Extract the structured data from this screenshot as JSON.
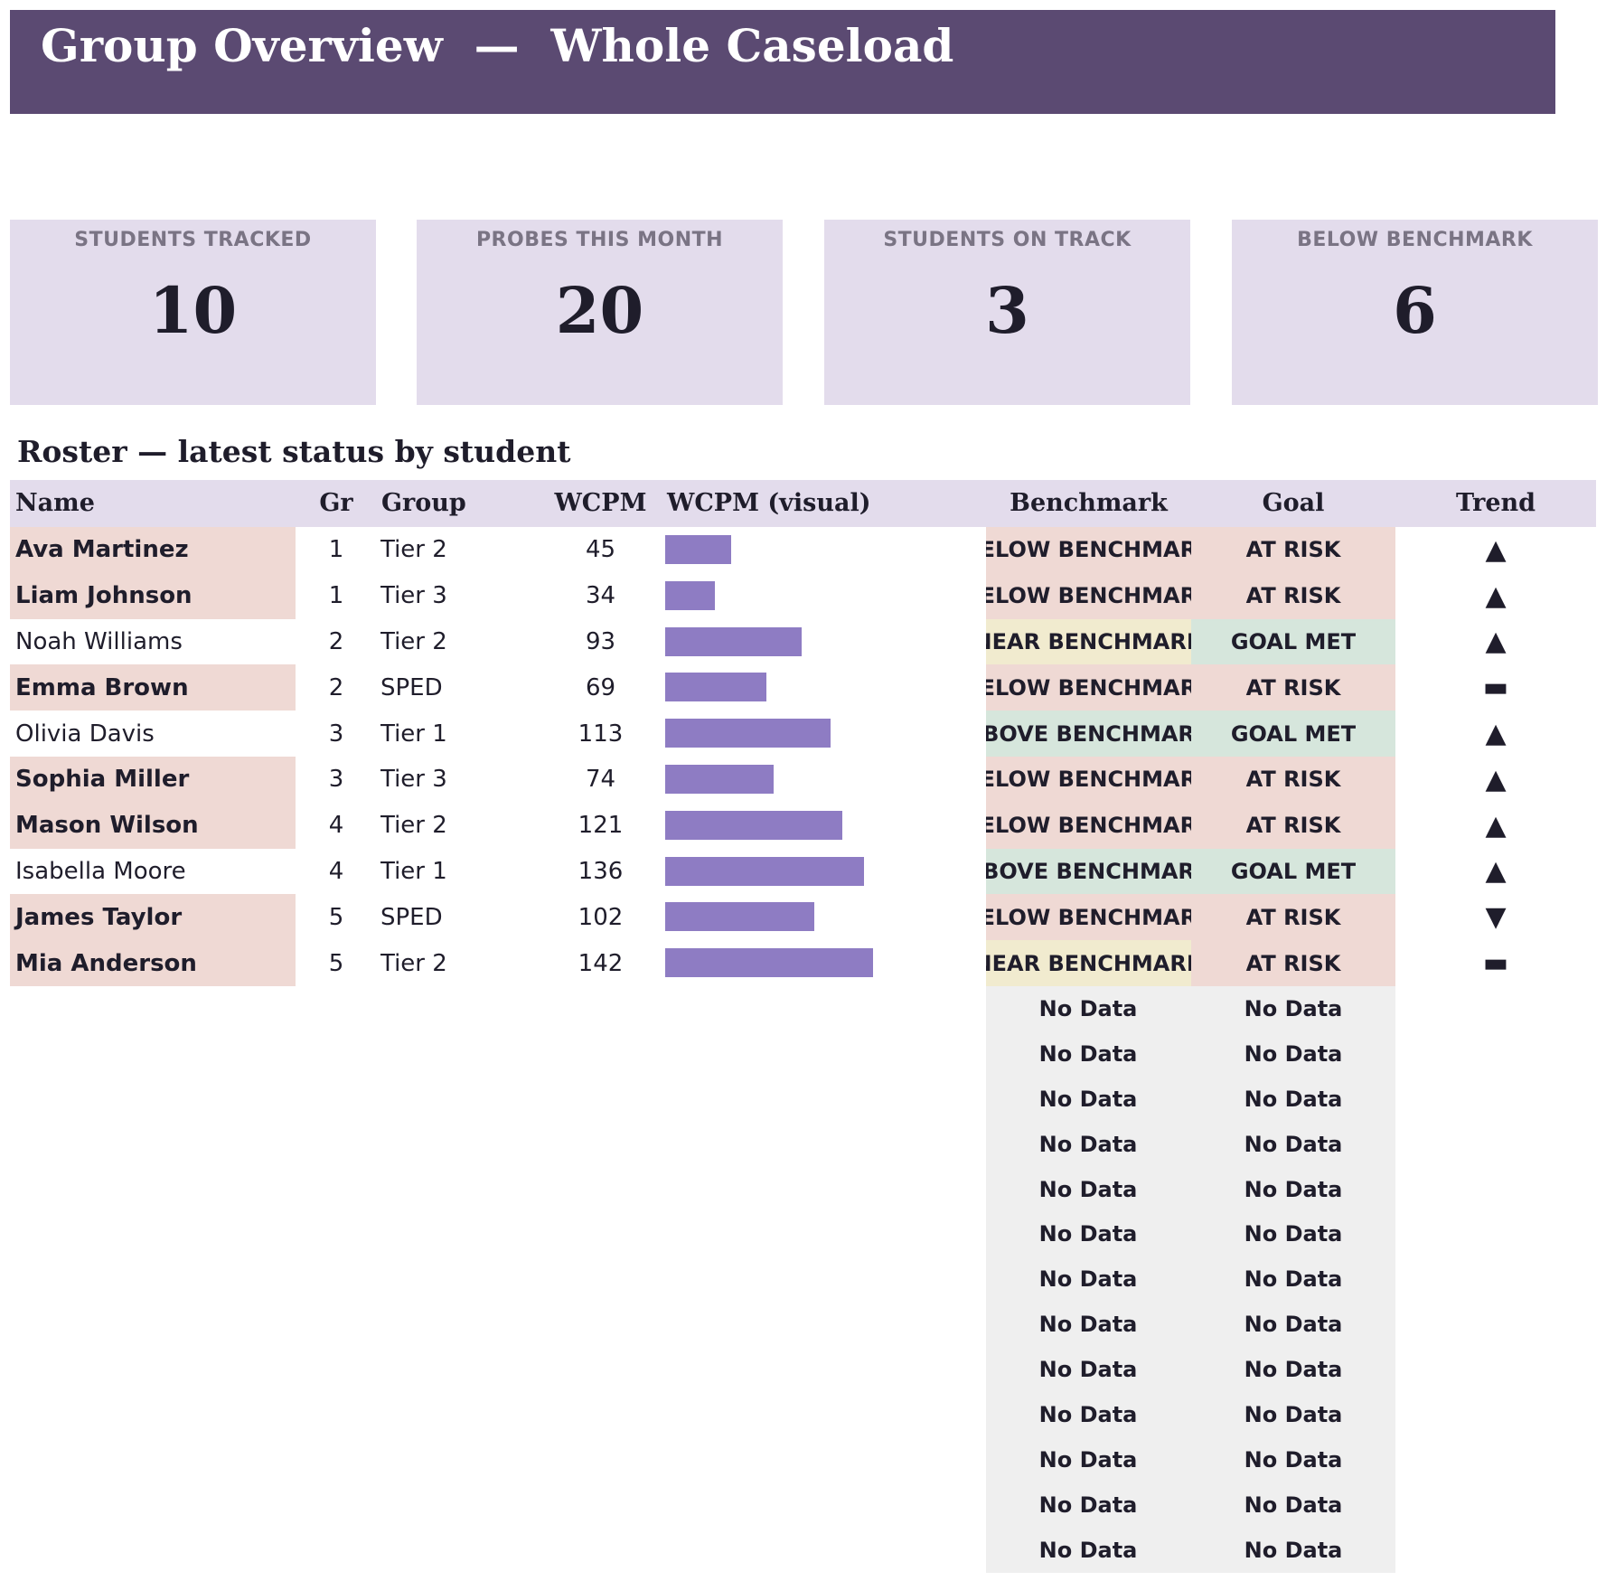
{
  "header": {
    "title": "Group Overview  —  Whole Caseload"
  },
  "cards": [
    {
      "label": "STUDENTS TRACKED",
      "value": "10"
    },
    {
      "label": "PROBES THIS MONTH",
      "value": "20"
    },
    {
      "label": "STUDENTS ON TRACK",
      "value": "3"
    },
    {
      "label": "BELOW BENCHMARK",
      "value": "6"
    }
  ],
  "roster": {
    "title": "Roster — latest status by student",
    "columns": [
      "Name",
      "Gr",
      "Group",
      "WCPM",
      "WCPM (visual)",
      "Benchmark",
      "Goal",
      "Trend"
    ],
    "wcpm_visual_max": 142,
    "rows": [
      {
        "name": "Ava Martinez",
        "grade": "1",
        "group": "Tier 2",
        "wcpm": 45,
        "benchmark": "BELOW BENCHMARK",
        "goal": "AT RISK",
        "trend": "▲",
        "flagged": true
      },
      {
        "name": "Liam Johnson",
        "grade": "1",
        "group": "Tier 3",
        "wcpm": 34,
        "benchmark": "BELOW BENCHMARK",
        "goal": "AT RISK",
        "trend": "▲",
        "flagged": true
      },
      {
        "name": "Noah Williams",
        "grade": "2",
        "group": "Tier 2",
        "wcpm": 93,
        "benchmark": "NEAR BENCHMARK",
        "goal": "GOAL MET",
        "trend": "▲",
        "flagged": false
      },
      {
        "name": "Emma Brown",
        "grade": "2",
        "group": "SPED",
        "wcpm": 69,
        "benchmark": "BELOW BENCHMARK",
        "goal": "AT RISK",
        "trend": "▬",
        "flagged": true
      },
      {
        "name": "Olivia Davis",
        "grade": "3",
        "group": "Tier 1",
        "wcpm": 113,
        "benchmark": "ABOVE BENCHMARK",
        "goal": "GOAL MET",
        "trend": "▲",
        "flagged": false
      },
      {
        "name": "Sophia Miller",
        "grade": "3",
        "group": "Tier 3",
        "wcpm": 74,
        "benchmark": "BELOW BENCHMARK",
        "goal": "AT RISK",
        "trend": "▲",
        "flagged": true
      },
      {
        "name": "Mason Wilson",
        "grade": "4",
        "group": "Tier 2",
        "wcpm": 121,
        "benchmark": "BELOW BENCHMARK",
        "goal": "AT RISK",
        "trend": "▲",
        "flagged": true
      },
      {
        "name": "Isabella Moore",
        "grade": "4",
        "group": "Tier 1",
        "wcpm": 136,
        "benchmark": "ABOVE BENCHMARK",
        "goal": "GOAL MET",
        "trend": "▲",
        "flagged": false
      },
      {
        "name": "James Taylor",
        "grade": "5",
        "group": "SPED",
        "wcpm": 102,
        "benchmark": "BELOW BENCHMARK",
        "goal": "AT RISK",
        "trend": "▼",
        "flagged": true
      },
      {
        "name": "Mia Anderson",
        "grade": "5",
        "group": "Tier 2",
        "wcpm": 142,
        "benchmark": "NEAR BENCHMARK",
        "goal": "AT RISK",
        "trend": "▬",
        "flagged": true
      }
    ],
    "no_data_label": "No Data",
    "no_data_rows": 13
  },
  "colors": {
    "banner": "#5b4a72",
    "card_bg": "#e3dcec",
    "bar": "#8e7cc3",
    "below": "#efd9d4",
    "near": "#f1ebcf",
    "above": "#d6e6dc",
    "no_data": "#efefef"
  }
}
